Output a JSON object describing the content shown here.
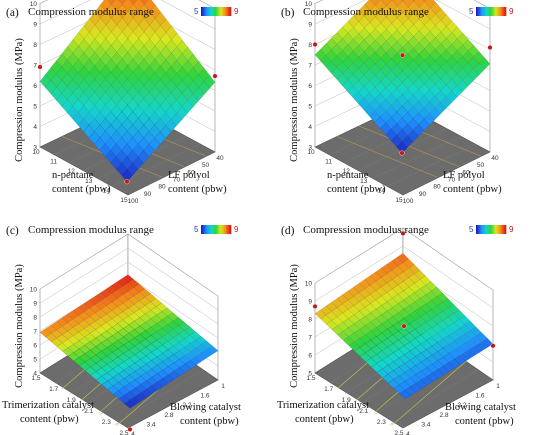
{
  "legend": {
    "title": "Compression modulus range",
    "min_label": "5",
    "max_label": "9",
    "colors": [
      "#1f1fbf",
      "#1e8fff",
      "#13d7c9",
      "#2fd33c",
      "#d9e81e",
      "#f58a1a",
      "#e01818"
    ]
  },
  "colors": {
    "floor": "#6c6c6c",
    "floor_dark": "#555555",
    "wall": "#ffffff",
    "wall_grid": "#b9b9b9",
    "design_point": "#c61717"
  },
  "chart_data": [
    {
      "panel": "(a)",
      "type": "surface3d",
      "title": "Compression modulus range",
      "zlabel": "Compression modulus (MPa)",
      "ylabel": [
        "n-pentane",
        "content (pbw)"
      ],
      "xlabel": [
        "LF polyol",
        "content (pbw)"
      ],
      "z_ticks": [
        "3",
        "4",
        "5",
        "6",
        "7",
        "8",
        "9",
        "10"
      ],
      "y_ticks": [
        "10",
        "11",
        "12",
        "13",
        "14",
        "15"
      ],
      "x_ticks": [
        "100",
        "90",
        "80",
        "70",
        "60",
        "50",
        "40"
      ],
      "zlim": [
        3,
        10
      ],
      "surface_corners": {
        "back": 9.6,
        "left": 6.2,
        "right": 6.4,
        "front": 3.6
      },
      "color_range": [
        3.6,
        9.6
      ],
      "design_points": [
        {
          "corner": "back",
          "z": 9.6
        },
        {
          "corner": "left",
          "z": 6.9
        },
        {
          "corner": "right",
          "z": 6.7
        },
        {
          "corner": "front",
          "z": 3.6
        }
      ]
    },
    {
      "panel": "(b)",
      "type": "surface3d",
      "title": "Compression modulus range",
      "zlabel": "Compression modulus (MPa)",
      "ylabel": [
        "n-pentane",
        "content (pbw)"
      ],
      "xlabel": [
        "LF polyol",
        "content (pbw)"
      ],
      "z_ticks": [
        "3",
        "4",
        "5",
        "6",
        "7",
        "8",
        "9",
        "10"
      ],
      "y_ticks": [
        "10",
        "11",
        "12",
        "13",
        "14",
        "15"
      ],
      "x_ticks": [
        "100",
        "90",
        "80",
        "70",
        "60",
        "50",
        "40"
      ],
      "zlim": [
        3,
        10
      ],
      "surface_corners": {
        "back": 9.8,
        "left": 7.5,
        "right": 7.3,
        "front": 5.0
      },
      "color_range": [
        5.0,
        9.8
      ],
      "design_points": [
        {
          "corner": "back",
          "z": 9.2
        },
        {
          "corner": "left",
          "z": 8.0
        },
        {
          "corner": "center",
          "z": 7.6
        },
        {
          "corner": "right",
          "z": 8.1
        },
        {
          "corner": "front",
          "z": 5.0
        }
      ]
    },
    {
      "panel": "(c)",
      "type": "surface3d",
      "title": "Compression modulus range",
      "zlabel": "Compression modulus (MPa)",
      "ylabel": [
        "Trimerization catalyst",
        "content (pbw)"
      ],
      "xlabel": [
        "Blowing catalyst",
        "content (pbw)"
      ],
      "z_ticks": [
        "4",
        "5",
        "6",
        "7",
        "8",
        "9",
        "10"
      ],
      "y_ticks": [
        "1.5",
        "1.7",
        "1.9",
        "2.1",
        "2.3",
        "2.5"
      ],
      "x_ticks": [
        "4",
        "3.4",
        "2.8",
        "2.2",
        "1.6",
        "1"
      ],
      "zlim": [
        4,
        10
      ],
      "surface_corners": {
        "back": 7.1,
        "left": 6.9,
        "right": 6.1,
        "front": 5.9
      },
      "color_range": [
        5.9,
        7.1
      ],
      "design_points": [
        {
          "corner": "front",
          "z": 4.4
        }
      ]
    },
    {
      "panel": "(d)",
      "type": "surface3d",
      "title": "Compression modulus range",
      "zlabel": "Compression modulus (MPa)",
      "ylabel": [
        "Trimerization catalyst",
        "content (pbw)"
      ],
      "xlabel": [
        "Blowing catalyst",
        "content (pbw)"
      ],
      "z_ticks": [
        "5",
        "6",
        "7",
        "8",
        "9",
        "10"
      ],
      "y_ticks": [
        "1.5",
        "1.7",
        "1.9",
        "2.1",
        "2.3",
        "2.5"
      ],
      "x_ticks": [
        "4",
        "3.4",
        "2.8",
        "2.2",
        "1.6",
        "1"
      ],
      "zlim": [
        5,
        10
      ],
      "surface_corners": {
        "back": 8.6,
        "left": 8.3,
        "right": 7.0,
        "front": 7.0
      },
      "color_range": [
        6.8,
        8.8
      ],
      "design_points": [
        {
          "corner": "back",
          "z": 9.7
        },
        {
          "corner": "left",
          "z": 8.7
        },
        {
          "corner": "center",
          "z": 7.8
        },
        {
          "corner": "right",
          "z": 6.9
        }
      ]
    }
  ]
}
